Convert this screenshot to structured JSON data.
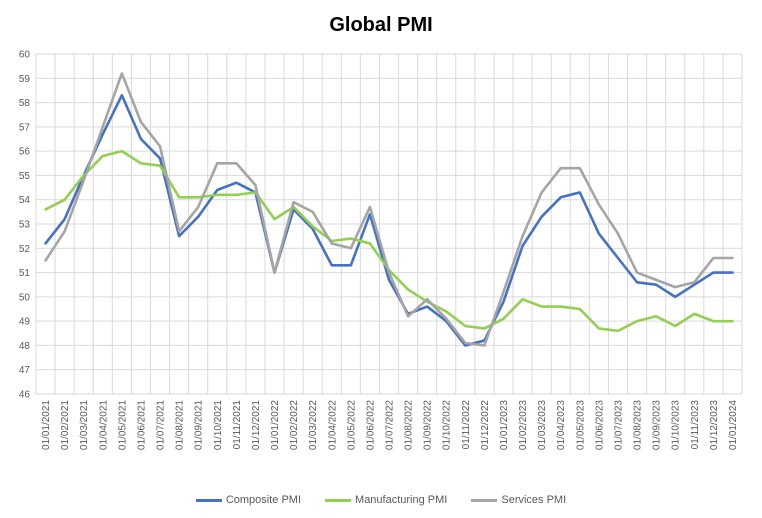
{
  "chart_data": {
    "type": "line",
    "title": "Global PMI",
    "xlabel": "",
    "ylabel": "",
    "ylim": [
      46,
      60
    ],
    "yticks": [
      "46",
      "47",
      "48",
      "49",
      "50",
      "51",
      "52",
      "53",
      "54",
      "55",
      "56",
      "57",
      "58",
      "59",
      "60"
    ],
    "grid": true,
    "legend_position": "bottom",
    "x": [
      "01/01/2021",
      "01/02/2021",
      "01/03/2021",
      "01/04/2021",
      "01/05/2021",
      "01/06/2021",
      "01/07/2021",
      "01/08/2021",
      "01/09/2021",
      "01/10/2021",
      "01/11/2021",
      "01/12/2021",
      "01/01/2022",
      "01/02/2022",
      "01/03/2022",
      "01/04/2022",
      "01/05/2022",
      "01/06/2022",
      "01/07/2022",
      "01/08/2022",
      "01/09/2022",
      "01/10/2022",
      "01/11/2022",
      "01/12/2022",
      "01/01/2023",
      "01/02/2023",
      "01/03/2023",
      "01/04/2023",
      "01/05/2023",
      "01/06/2023",
      "01/07/2023",
      "01/08/2023",
      "01/09/2023",
      "01/10/2023",
      "01/11/2023",
      "01/12/2023",
      "01/01/2024"
    ],
    "series": [
      {
        "name": "Composite PMI",
        "color": "#4472C4",
        "values": [
          52.2,
          53.2,
          55.0,
          56.7,
          58.3,
          56.5,
          55.7,
          52.5,
          53.3,
          54.4,
          54.7,
          54.3,
          51.0,
          53.6,
          52.8,
          51.3,
          51.3,
          53.4,
          50.7,
          49.3,
          49.6,
          49.0,
          48.0,
          48.2,
          49.8,
          52.1,
          53.3,
          54.1,
          54.3,
          52.6,
          51.6,
          50.6,
          50.5,
          50.0,
          50.5,
          51.0,
          51.0
        ]
      },
      {
        "name": "Manufacturing PMI",
        "color": "#92D050",
        "values": [
          53.6,
          54.0,
          55.0,
          55.8,
          56.0,
          55.5,
          55.4,
          54.1,
          54.1,
          54.2,
          54.2,
          54.3,
          53.2,
          53.7,
          52.9,
          52.3,
          52.4,
          52.2,
          51.1,
          50.3,
          49.8,
          49.4,
          48.8,
          48.7,
          49.1,
          49.9,
          49.6,
          49.6,
          49.5,
          48.7,
          48.6,
          49.0,
          49.2,
          48.8,
          49.3,
          49.0,
          49.0
        ]
      },
      {
        "name": "Services PMI",
        "color": "#A5A5A5",
        "values": [
          51.5,
          52.7,
          54.8,
          57.0,
          59.2,
          57.2,
          56.2,
          52.7,
          53.7,
          55.5,
          55.5,
          54.6,
          51.0,
          53.9,
          53.5,
          52.2,
          52.0,
          53.7,
          51.0,
          49.2,
          49.9,
          49.1,
          48.1,
          48.0,
          50.2,
          52.5,
          54.3,
          55.3,
          55.3,
          53.8,
          52.6,
          51.0,
          50.7,
          50.4,
          50.6,
          51.6,
          51.6
        ]
      }
    ]
  }
}
